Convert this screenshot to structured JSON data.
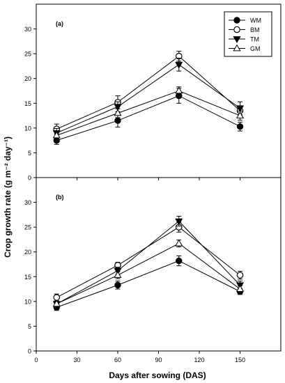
{
  "chart_data": [
    {
      "panel_label": "(a)",
      "type": "line",
      "x": [
        15,
        60,
        105,
        150
      ],
      "xlim": [
        0,
        180
      ],
      "xticks": [
        0,
        30,
        60,
        90,
        120,
        150
      ],
      "ylim": [
        0,
        35
      ],
      "yticks": [
        0,
        5,
        10,
        15,
        20,
        25,
        30
      ],
      "ylabel": "Crop growth rate (g m⁻² day⁻¹)",
      "legend_position": "top-right",
      "series": [
        {
          "name": "WM",
          "marker": "filled-circle",
          "values": [
            7.5,
            11.5,
            16.5,
            10.3
          ],
          "errors": [
            0.8,
            1.3,
            1.5,
            0.9
          ]
        },
        {
          "name": "BM",
          "marker": "open-circle",
          "values": [
            9.8,
            15.2,
            24.5,
            13.5
          ],
          "errors": [
            1.0,
            1.3,
            1.0,
            1.0
          ]
        },
        {
          "name": "TM",
          "marker": "filled-triangle-down",
          "values": [
            9.0,
            14.3,
            22.8,
            14.0
          ],
          "errors": [
            0.9,
            1.0,
            1.3,
            1.3
          ]
        },
        {
          "name": "GM",
          "marker": "open-triangle-up",
          "values": [
            8.5,
            13.0,
            17.5,
            12.5
          ],
          "errors": [
            0.8,
            0.9,
            0.8,
            0.9
          ]
        }
      ]
    },
    {
      "panel_label": "(b)",
      "type": "line",
      "x": [
        15,
        60,
        105,
        150
      ],
      "xlim": [
        0,
        180
      ],
      "xticks": [
        0,
        30,
        60,
        90,
        120,
        150
      ],
      "xlabel": "Days after sowing (DAS)",
      "ylim": [
        0,
        35
      ],
      "yticks": [
        0,
        5,
        10,
        15,
        20,
        25,
        30
      ],
      "series": [
        {
          "name": "WM",
          "marker": "filled-circle",
          "values": [
            8.8,
            13.3,
            18.2,
            12.0
          ],
          "errors": [
            0.6,
            0.8,
            1.0,
            0.6
          ]
        },
        {
          "name": "BM",
          "marker": "open-circle",
          "values": [
            10.8,
            17.3,
            25.0,
            15.3
          ],
          "errors": [
            0.7,
            0.6,
            1.0,
            0.8
          ]
        },
        {
          "name": "TM",
          "marker": "filled-triangle-down",
          "values": [
            9.5,
            16.2,
            26.2,
            13.3
          ],
          "errors": [
            0.6,
            0.7,
            1.0,
            0.8
          ]
        },
        {
          "name": "GM",
          "marker": "open-triangle-up",
          "values": [
            9.5,
            15.3,
            21.7,
            12.5
          ],
          "errors": [
            0.6,
            0.7,
            0.7,
            0.7
          ]
        }
      ]
    }
  ]
}
